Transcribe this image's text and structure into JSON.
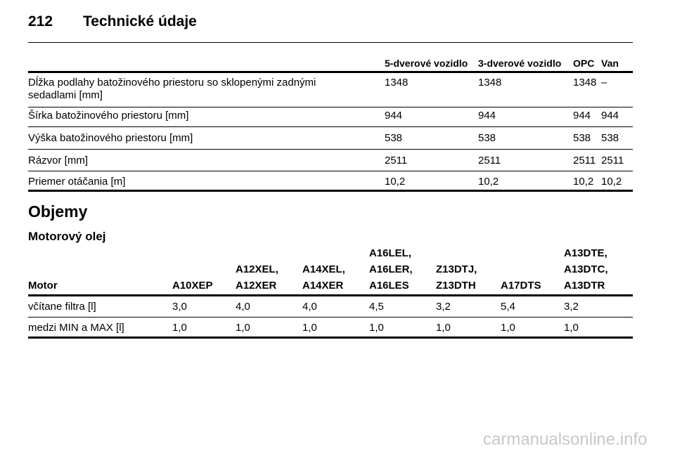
{
  "header": {
    "page": "212",
    "title": "Technické údaje"
  },
  "table1": {
    "columns": [
      "5-dverové vozidlo",
      "3-dverové vozidlo",
      "OPC",
      "Van"
    ],
    "rows": [
      {
        "label": "Dĺžka podlahy batožinového priestoru so sklopenými zadnými sedadlami [mm]",
        "values": [
          "1348",
          "1348",
          "1348",
          "–"
        ]
      },
      {
        "label": "Šírka batožinového priestoru [mm]",
        "values": [
          "944",
          "944",
          "944",
          "944"
        ]
      },
      {
        "label": "Výška batožinového priestoru [mm]",
        "values": [
          "538",
          "538",
          "538",
          "538"
        ]
      },
      {
        "label": "Rázvor [mm]",
        "values": [
          "2511",
          "2511",
          "2511",
          "2511"
        ]
      },
      {
        "label": "Priemer otáčania [m]",
        "values": [
          "10,2",
          "10,2",
          "10,2",
          "10,2"
        ]
      }
    ]
  },
  "section": {
    "title": "Objemy",
    "subtitle": "Motorový olej"
  },
  "table2": {
    "columns": [
      [
        "Motor"
      ],
      [
        "A10XEP"
      ],
      [
        "A12XEL,",
        "A12XER"
      ],
      [
        "A14XEL,",
        "A14XER"
      ],
      [
        "A16LEL,",
        "A16LER,",
        "A16LES"
      ],
      [
        "Z13DTJ,",
        "Z13DTH"
      ],
      [
        "A17DTS"
      ],
      [
        "A13DTE,",
        "A13DTC,",
        "A13DTR"
      ]
    ],
    "rows": [
      {
        "label": "včítane filtra [l]",
        "values": [
          "3,0",
          "4,0",
          "4,0",
          "4,5",
          "3,2",
          "5,4",
          "3,2"
        ]
      },
      {
        "label": "medzi MIN a MAX [l]",
        "values": [
          "1,0",
          "1,0",
          "1,0",
          "1,0",
          "1,0",
          "1,0",
          "1,0"
        ]
      }
    ]
  },
  "watermark": "carmanualsonline.info"
}
